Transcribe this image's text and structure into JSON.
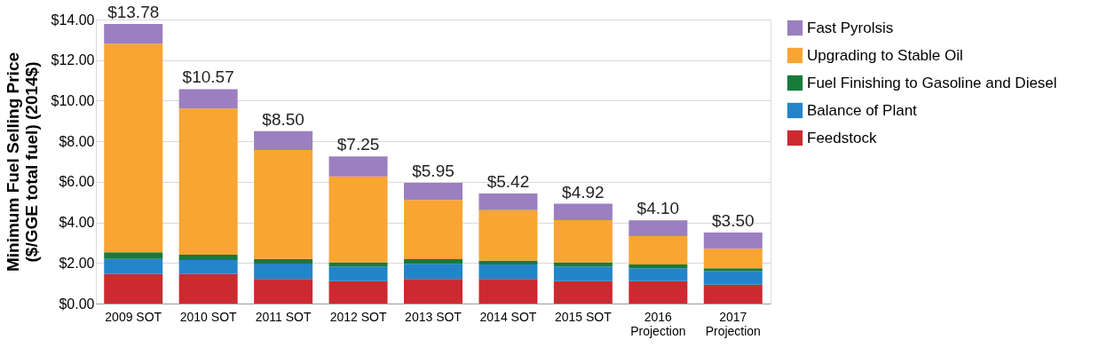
{
  "chart_data": {
    "type": "bar",
    "stacked": true,
    "ylabel": "Minimum Fuel Selling Price\n($/GGE total fuel) (2014$)",
    "categories": [
      "2009 SOT",
      "2010 SOT",
      "2011 SOT",
      "2012 SOT",
      "2013 SOT",
      "2014 SOT",
      "2015 SOT",
      "2016\nProjection",
      "2017\nProjection"
    ],
    "series": [
      {
        "name": "Feedstock",
        "color": "#cc2a30",
        "values": [
          1.46,
          1.46,
          1.21,
          1.11,
          1.21,
          1.21,
          1.1,
          1.1,
          0.93
        ]
      },
      {
        "name": "Balance of Plant",
        "color": "#2385c9",
        "values": [
          0.74,
          0.68,
          0.76,
          0.72,
          0.75,
          0.72,
          0.73,
          0.64,
          0.68
        ]
      },
      {
        "name": "Fuel Finishing to Gasoline and Diesel",
        "color": "#1a7a3a",
        "values": [
          0.33,
          0.27,
          0.23,
          0.2,
          0.23,
          0.18,
          0.2,
          0.19,
          0.13
        ]
      },
      {
        "name": "Upgrading to Stable Oil",
        "color": "#f9a533",
        "values": [
          10.28,
          7.2,
          5.37,
          4.24,
          2.92,
          2.5,
          2.08,
          1.4,
          0.96
        ]
      },
      {
        "name": "Fast Pyrolsis",
        "color": "#9b7fc0",
        "values": [
          0.97,
          0.96,
          0.93,
          0.98,
          0.84,
          0.81,
          0.81,
          0.77,
          0.8
        ]
      }
    ],
    "totals": [
      "$13.78",
      "$10.57",
      "$8.50",
      "$7.25",
      "$5.95",
      "$5.42",
      "$4.92",
      "$4.10",
      "$3.50"
    ],
    "ylim": [
      0,
      14
    ],
    "yticks": [
      {
        "value": 0,
        "label": "$0.00"
      },
      {
        "value": 2,
        "label": "$2.00"
      },
      {
        "value": 4,
        "label": "$4.00"
      },
      {
        "value": 6,
        "label": "$6.00"
      },
      {
        "value": 8,
        "label": "$8.00"
      },
      {
        "value": 10,
        "label": "$10.00"
      },
      {
        "value": 12,
        "label": "$12.00"
      },
      {
        "value": 14,
        "label": "$14.00"
      }
    ],
    "grid": "y",
    "legend": "right"
  }
}
